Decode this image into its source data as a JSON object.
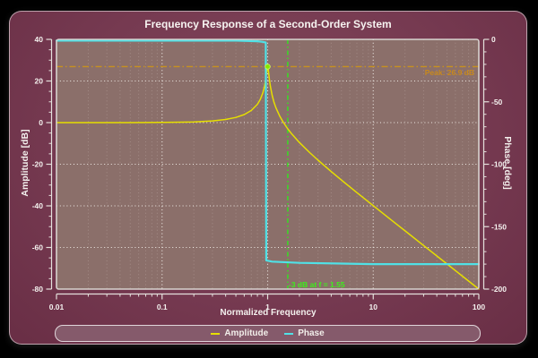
{
  "chart_data": {
    "type": "line",
    "title": "Frequency Response of a Second-Order System",
    "xlabel": "Normalized Frequency",
    "x_scale": "log",
    "x_range": [
      0.01,
      100
    ],
    "x_ticks": {
      "majors": [
        0.01,
        0.1,
        1,
        10,
        100
      ],
      "labels": [
        "0.01",
        "0.1",
        "1",
        "10",
        "100"
      ]
    },
    "left_axis": {
      "label": "Amplitude [dB]",
      "min": -80,
      "max": 40,
      "major_ticks": [
        40,
        20,
        0,
        -20,
        -40,
        -60,
        -80
      ],
      "minor_step": 5
    },
    "right_axis": {
      "label": "Phase [deg]",
      "min": -200,
      "max": 0,
      "major_ticks": [
        0,
        -50,
        -100,
        -150,
        -200
      ],
      "minor_step": 10
    },
    "plot_bg": "#8b6f6a",
    "grid": {
      "major_color": "#efeae5",
      "minor_color": "#a38b86"
    },
    "frame_color": "#d8d3cf",
    "spine_color": "#e4e0dc",
    "tick_label_color": "#f4f1ee",
    "series": [
      {
        "name": "Amplitude",
        "axis": "left",
        "color": "#e6de00",
        "width": 1.5,
        "points": [
          [
            0.01,
            0
          ],
          [
            0.02,
            0.01
          ],
          [
            0.05,
            0.02
          ],
          [
            0.1,
            0.09
          ],
          [
            0.15,
            0.2
          ],
          [
            0.2,
            0.35
          ],
          [
            0.3,
            0.82
          ],
          [
            0.4,
            1.51
          ],
          [
            0.5,
            2.5
          ],
          [
            0.6,
            3.87
          ],
          [
            0.7,
            5.83
          ],
          [
            0.8,
            8.83
          ],
          [
            0.85,
            11.05
          ],
          [
            0.9,
            14.23
          ],
          [
            0.93,
            17.0
          ],
          [
            0.95,
            19.45
          ],
          [
            0.97,
            22.66
          ],
          [
            0.98,
            24.52
          ],
          [
            0.99,
            26.2
          ],
          [
            1.0,
            26.9
          ],
          [
            1.01,
            26.0
          ],
          [
            1.02,
            24.25
          ],
          [
            1.04,
            20.52
          ],
          [
            1.06,
            17.55
          ],
          [
            1.1,
            13.32
          ],
          [
            1.15,
            9.72
          ],
          [
            1.2,
            7.07
          ],
          [
            1.3,
            3.19
          ],
          [
            1.4,
            0.34
          ],
          [
            1.5,
            -1.94
          ],
          [
            1.55,
            -2.95
          ],
          [
            1.7,
            -5.53
          ],
          [
            2,
            -9.55
          ],
          [
            2.5,
            -14.4
          ],
          [
            3,
            -18.06
          ],
          [
            4,
            -23.52
          ],
          [
            5,
            -27.6
          ],
          [
            7,
            -33.63
          ],
          [
            10,
            -39.91
          ],
          [
            15,
            -47.0
          ],
          [
            20,
            -52.02
          ],
          [
            30,
            -59.07
          ],
          [
            50,
            -67.96
          ],
          [
            70,
            -73.8
          ],
          [
            100,
            -80.0
          ]
        ]
      },
      {
        "name": "Phase",
        "axis": "right",
        "color": "#50e1e6",
        "width": 2.2,
        "points": [
          [
            0.01,
            -1
          ],
          [
            0.5,
            -1
          ],
          [
            0.8,
            -1.5
          ],
          [
            0.9,
            -2
          ],
          [
            0.96,
            -2.5
          ],
          [
            0.97,
            -177
          ],
          [
            1.1,
            -178
          ],
          [
            2,
            -179
          ],
          [
            10,
            -180
          ],
          [
            100,
            -180
          ]
        ]
      }
    ],
    "peak_line": {
      "db": 26.9,
      "color": "#c8911e",
      "label": "Peak: 26.9 dB",
      "label_color": "#c8891c"
    },
    "cutoff_line": {
      "freq": 1.55,
      "color": "#32e61e",
      "label": "-3 dB at f = 1.55",
      "label_color": "#3cf01c"
    },
    "peak_marker": {
      "freq": 1.0,
      "db": 26.9,
      "color": "#84e800"
    },
    "legend": [
      {
        "label": "Amplitude",
        "color": "#e6de00"
      },
      {
        "label": "Phase",
        "color": "#50e1e6"
      }
    ]
  }
}
